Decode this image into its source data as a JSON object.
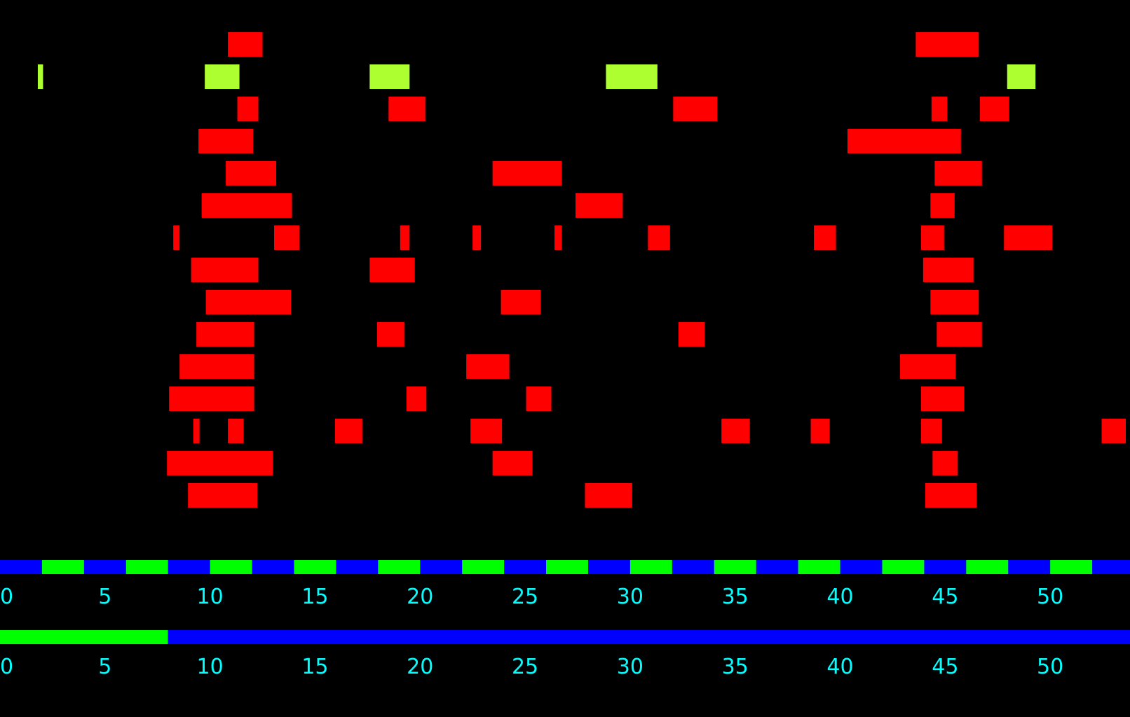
{
  "chart_data": {
    "type": "timeline",
    "x_range": [
      0,
      53.8
    ],
    "colors": {
      "background": "#000000",
      "event_red": "#ff0000",
      "event_green": "#adff2f",
      "scale_blue": "#0000ff",
      "scale_green": "#00ff00",
      "tick_label": "#00ffff"
    },
    "tracks": [
      {
        "color": "#ff0000",
        "events": [
          [
            10.85,
            12.5
          ],
          [
            43.6,
            46.6
          ]
        ]
      },
      {
        "color": "#adff2f",
        "events": [
          [
            1.8,
            2.05
          ],
          [
            9.75,
            11.4
          ],
          [
            17.6,
            19.5
          ],
          [
            28.85,
            31.3
          ],
          [
            47.95,
            49.3
          ]
        ]
      },
      {
        "color": "#ff0000",
        "events": [
          [
            11.3,
            12.3
          ],
          [
            18.5,
            20.25
          ],
          [
            32.05,
            34.15
          ],
          [
            44.35,
            45.1
          ],
          [
            46.65,
            48.05
          ]
        ]
      },
      {
        "color": "#ff0000",
        "events": [
          [
            9.45,
            12.05
          ],
          [
            40.35,
            45.75
          ]
        ]
      },
      {
        "color": "#ff0000",
        "events": [
          [
            10.75,
            13.15
          ],
          [
            23.45,
            26.75
          ],
          [
            44.5,
            46.75
          ]
        ]
      },
      {
        "color": "#ff0000",
        "events": [
          [
            9.6,
            13.9
          ],
          [
            27.4,
            29.65
          ],
          [
            44.3,
            45.45
          ]
        ]
      },
      {
        "color": "#ff0000",
        "events": [
          [
            8.25,
            8.55
          ],
          [
            13.05,
            14.25
          ],
          [
            19.05,
            19.5
          ],
          [
            22.5,
            22.9
          ],
          [
            26.4,
            26.75
          ],
          [
            30.85,
            31.9
          ],
          [
            38.75,
            39.8
          ],
          [
            43.85,
            44.95
          ],
          [
            47.8,
            50.1
          ]
        ]
      },
      {
        "color": "#ff0000",
        "events": [
          [
            9.1,
            12.3
          ],
          [
            17.6,
            19.75
          ],
          [
            43.95,
            46.35
          ]
        ]
      },
      {
        "color": "#ff0000",
        "events": [
          [
            9.8,
            13.85
          ],
          [
            23.85,
            25.75
          ],
          [
            44.3,
            46.6
          ]
        ]
      },
      {
        "color": "#ff0000",
        "events": [
          [
            9.35,
            12.1
          ],
          [
            17.95,
            19.25
          ],
          [
            32.3,
            33.55
          ],
          [
            44.6,
            46.75
          ]
        ]
      },
      {
        "color": "#ff0000",
        "events": [
          [
            8.55,
            12.1
          ],
          [
            22.2,
            24.25
          ],
          [
            42.85,
            45.5
          ]
        ]
      },
      {
        "color": "#ff0000",
        "events": [
          [
            8.05,
            12.1
          ],
          [
            19.35,
            20.3
          ],
          [
            25.05,
            26.25
          ],
          [
            43.85,
            45.9
          ]
        ]
      },
      {
        "color": "#ff0000",
        "events": [
          [
            9.2,
            9.5
          ],
          [
            10.85,
            11.6
          ],
          [
            15.95,
            17.25
          ],
          [
            22.4,
            23.9
          ],
          [
            34.35,
            35.7
          ],
          [
            38.6,
            39.5
          ],
          [
            43.85,
            44.85
          ],
          [
            52.45,
            53.6
          ]
        ]
      },
      {
        "color": "#ff0000",
        "events": [
          [
            7.95,
            13.0
          ],
          [
            23.45,
            25.35
          ],
          [
            44.4,
            45.6
          ]
        ]
      },
      {
        "color": "#ff0000",
        "events": [
          [
            8.95,
            12.25
          ],
          [
            27.85,
            30.1
          ],
          [
            44.05,
            46.5
          ]
        ]
      }
    ],
    "scales": [
      {
        "pattern": "alternating",
        "segment_width": 2,
        "colors": [
          "#0000ff",
          "#00ff00"
        ],
        "ticks": [
          "0",
          "5",
          "10",
          "15",
          "20",
          "25",
          "30",
          "35",
          "40",
          "45",
          "50"
        ],
        "tick_values": [
          0,
          5,
          10,
          15,
          20,
          25,
          30,
          35,
          40,
          45,
          50
        ]
      },
      {
        "pattern": "split",
        "split_at": 8,
        "colors": [
          "#00ff00",
          "#0000ff"
        ],
        "ticks": [
          "0",
          "5",
          "10",
          "15",
          "20",
          "25",
          "30",
          "35",
          "40",
          "45",
          "50"
        ],
        "tick_values": [
          0,
          5,
          10,
          15,
          20,
          25,
          30,
          35,
          40,
          45,
          50
        ]
      }
    ]
  }
}
